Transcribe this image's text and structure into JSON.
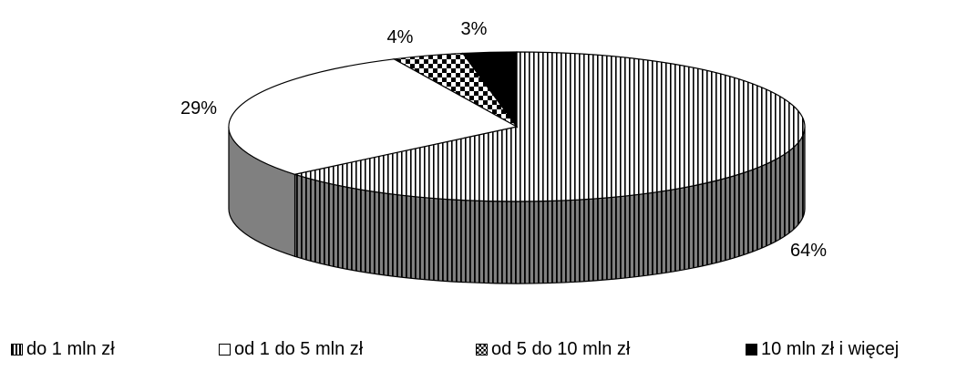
{
  "chart_data": {
    "type": "pie",
    "title": "",
    "categories": [
      "do 1 mln zł",
      "od 1 do 5 mln zł",
      "od 5 do 10 mln zł",
      "10 mln zł i więcej"
    ],
    "values": [
      64,
      29,
      4,
      3
    ],
    "labels": [
      "64%",
      "29%",
      "4%",
      "3%"
    ],
    "patterns": [
      "vertical-stripes",
      "white",
      "checker",
      "black"
    ],
    "legend_position": "bottom",
    "style": "3d-pie"
  }
}
